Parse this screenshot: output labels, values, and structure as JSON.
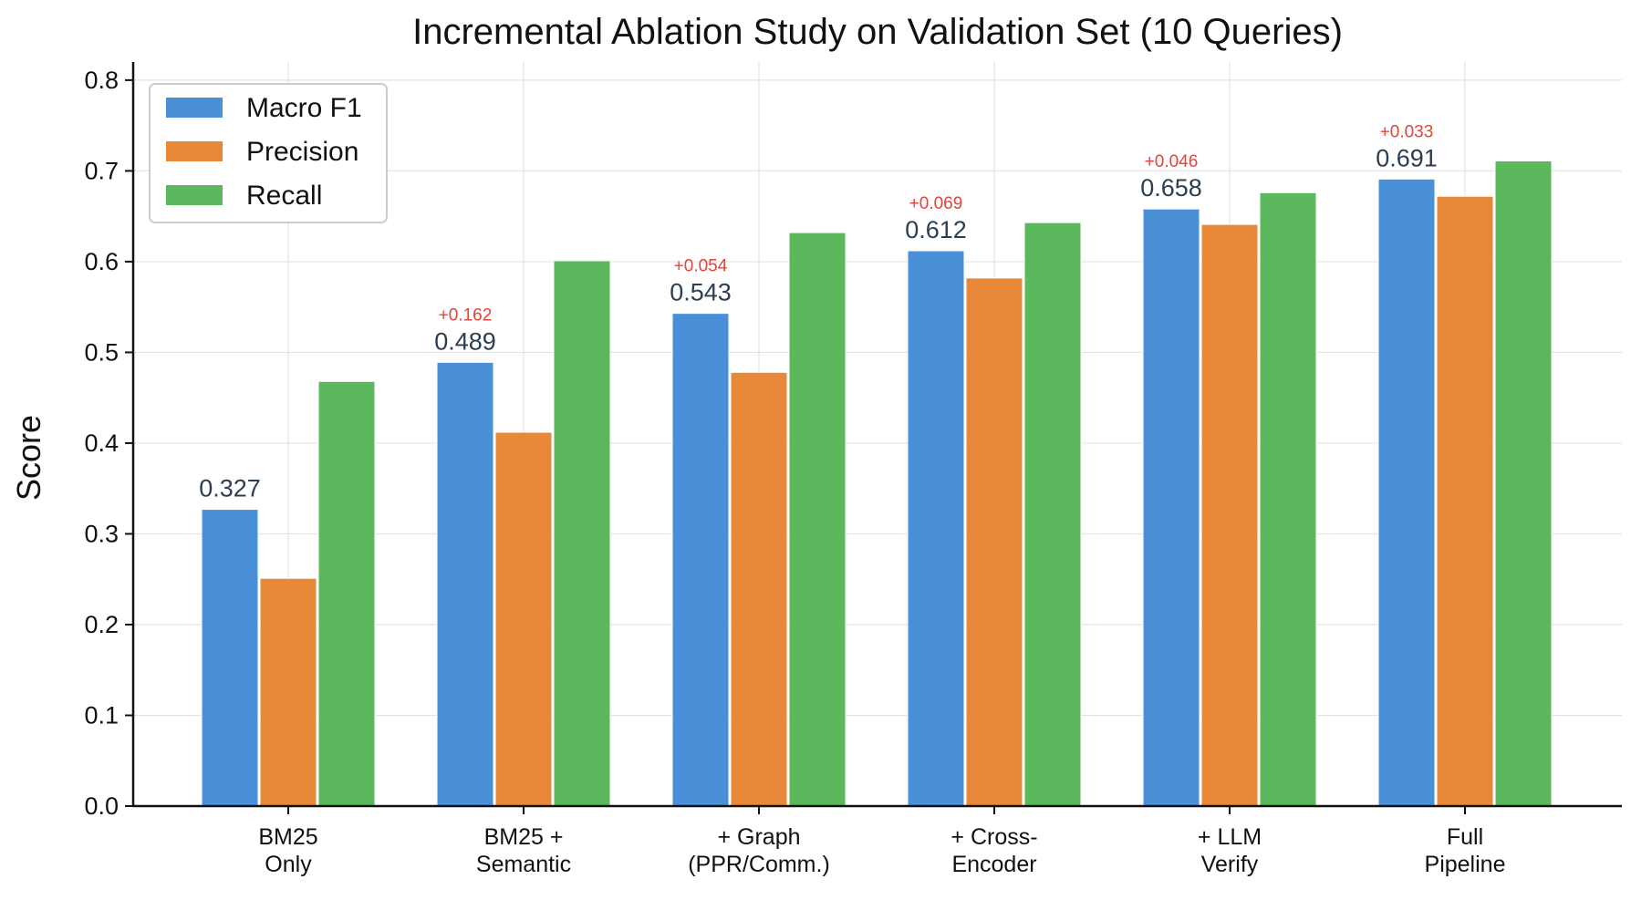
{
  "chart_data": {
    "type": "bar",
    "title": "Incremental Ablation Study on Validation Set (10 Queries)",
    "xlabel": "",
    "ylabel": "Score",
    "ylim": [
      0,
      0.82
    ],
    "yticks": [
      "0.0",
      "0.1",
      "0.2",
      "0.3",
      "0.4",
      "0.5",
      "0.6",
      "0.7",
      "0.8"
    ],
    "grid": true,
    "legend_position": "top-left",
    "categories": [
      [
        "BM25",
        "Only"
      ],
      [
        "BM25 +",
        "Semantic"
      ],
      [
        "+ Graph",
        "(PPR/Comm.)"
      ],
      [
        "+ Cross-",
        "Encoder"
      ],
      [
        "+ LLM",
        "Verify"
      ],
      [
        "Full",
        "Pipeline"
      ]
    ],
    "series": [
      {
        "name": "Macro F1",
        "color": "#4a90d9",
        "values": [
          0.327,
          0.489,
          0.543,
          0.612,
          0.658,
          0.691
        ]
      },
      {
        "name": "Precision",
        "color": "#e8893a",
        "values": [
          0.251,
          0.412,
          0.478,
          0.582,
          0.641,
          0.672
        ]
      },
      {
        "name": "Recall",
        "color": "#5cb85c",
        "values": [
          0.468,
          0.601,
          0.632,
          0.643,
          0.676,
          0.711
        ]
      }
    ],
    "value_labels": [
      "0.327",
      "0.489",
      "0.543",
      "0.612",
      "0.658",
      "0.691"
    ],
    "delta_labels": [
      "",
      "+0.162",
      "+0.054",
      "+0.069",
      "+0.046",
      "+0.033"
    ],
    "delta_color": "#e0443a",
    "value_label_color": "#2c3e50"
  }
}
